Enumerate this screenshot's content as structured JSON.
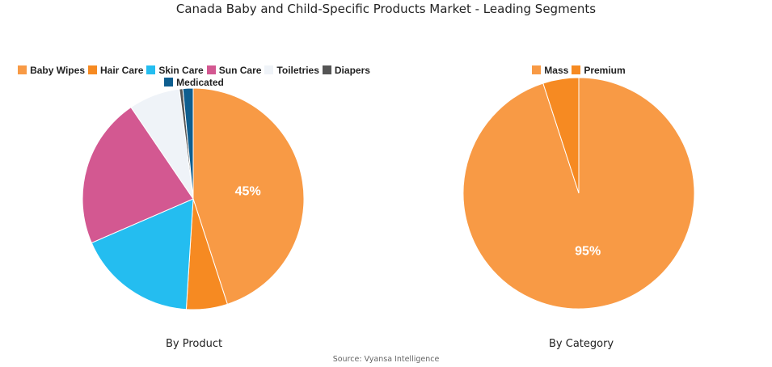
{
  "title": "Canada Baby and Child-Specific Products  Market - Leading Segments",
  "source": "Source: Vyansa Intelligence",
  "chart_data": [
    {
      "type": "pie",
      "subtitle": "By Product",
      "legend_placement": "top",
      "slices": [
        {
          "name": "Baby Wipes",
          "value": 45,
          "color": "#F89A45",
          "label": "45%"
        },
        {
          "name": "Hair Care",
          "value": 6,
          "color": "#F68A22"
        },
        {
          "name": "Skin Care",
          "value": 17.5,
          "color": "#24BDF0"
        },
        {
          "name": "Sun Care",
          "value": 22,
          "color": "#D35891"
        },
        {
          "name": "Toiletries",
          "value": 7.5,
          "color": "#EFF3F8"
        },
        {
          "name": "Diapers",
          "value": 0.5,
          "color": "#555555"
        },
        {
          "name": "Medicated",
          "value": 1.5,
          "color": "#0E5E8F"
        }
      ]
    },
    {
      "type": "pie",
      "subtitle": "By Category",
      "legend_placement": "top",
      "slices": [
        {
          "name": "Mass",
          "value": 95,
          "color": "#F89A45",
          "label": "95%"
        },
        {
          "name": "Premium",
          "value": 5,
          "color": "#F68A22"
        }
      ]
    }
  ]
}
